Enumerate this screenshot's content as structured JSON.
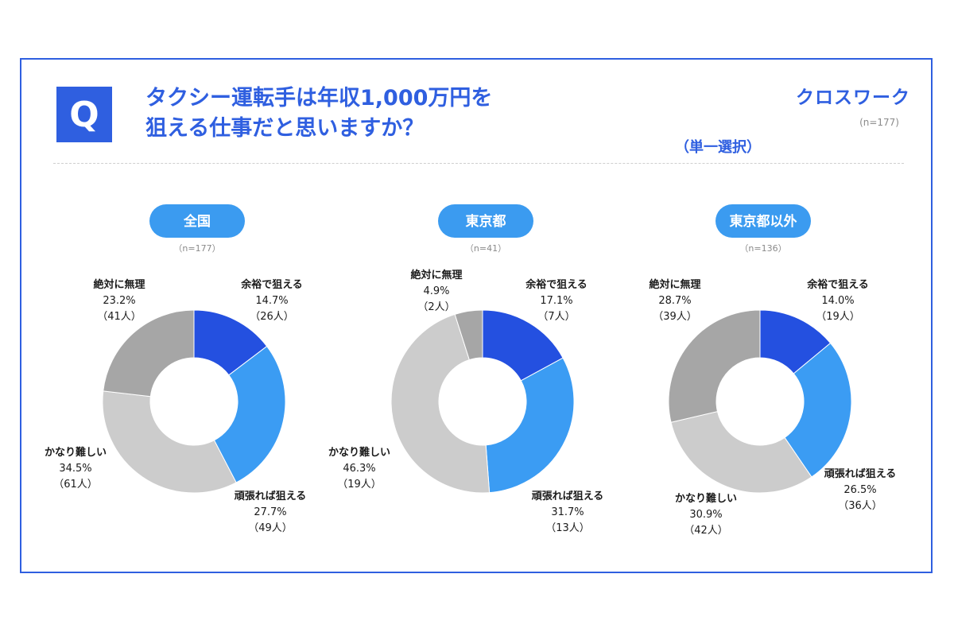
{
  "header": {
    "q_mark": "Q",
    "title_line1": "タクシー運転手は年収1,000万円を",
    "title_line2": "狙える仕事だと思いますか？",
    "logo": "クロスワーク",
    "total_n": "(n=177)",
    "answer_mode": "（単一選択）"
  },
  "colors": {
    "brand": "#2f5fe0",
    "pill": "#3b9bf0",
    "slice_1": "#2450e0",
    "slice_2": "#3b9cf3",
    "slice_3": "#cccccc",
    "slice_4": "#a6a6a6"
  },
  "chart_data": [
    {
      "type": "pie",
      "title": "全国",
      "n": "（n=177）",
      "categories": [
        "余裕で狙える",
        "頑張れば狙える",
        "かなり難しい",
        "絶対に無理"
      ],
      "values": [
        14.7,
        27.7,
        34.5,
        23.2
      ],
      "percent_labels": [
        "14.7%",
        "27.7%",
        "34.5%",
        "23.2%"
      ],
      "counts": [
        "（26人）",
        "（49人）",
        "（61人）",
        "（41人）"
      ]
    },
    {
      "type": "pie",
      "title": "東京都",
      "n": "（n=41）",
      "categories": [
        "余裕で狙える",
        "頑張れば狙える",
        "かなり難しい",
        "絶対に無理"
      ],
      "values": [
        17.1,
        31.7,
        46.3,
        4.9
      ],
      "percent_labels": [
        "17.1%",
        "31.7%",
        "46.3%",
        "4.9%"
      ],
      "counts": [
        "（7人）",
        "（13人）",
        "（19人）",
        "（2人）"
      ]
    },
    {
      "type": "pie",
      "title": "東京都以外",
      "n": "（n=136）",
      "categories": [
        "余裕で狙える",
        "頑張れば狙える",
        "かなり難しい",
        "絶対に無理"
      ],
      "values": [
        14.0,
        26.5,
        30.9,
        28.7
      ],
      "percent_labels": [
        "14.0%",
        "26.5%",
        "30.9%",
        "28.7%"
      ],
      "counts": [
        "（19人）",
        "（36人）",
        "（42人）",
        "（39人）"
      ]
    }
  ]
}
